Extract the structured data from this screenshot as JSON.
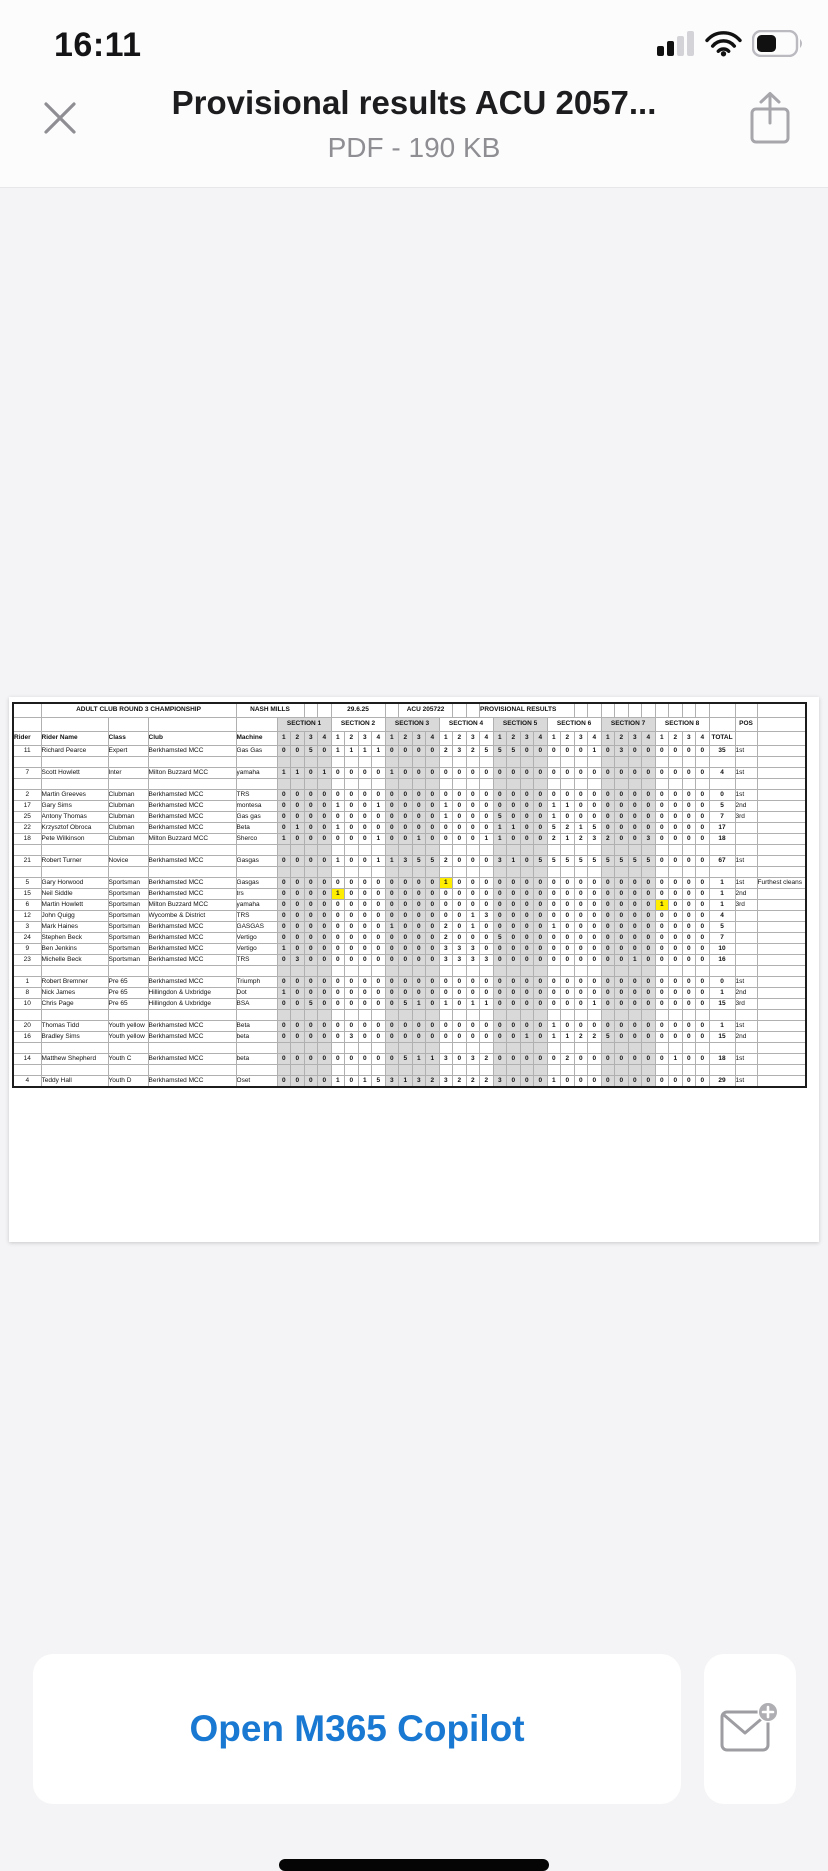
{
  "status_bar": {
    "time": "16:11"
  },
  "header": {
    "title": "Provisional results ACU 2057...",
    "subtitle": "PDF - 190 KB"
  },
  "icons": {
    "close": "x-icon",
    "share": "share-up-arrow-icon",
    "signal": "cellular-signal-icon",
    "wifi": "wifi-icon",
    "battery": "battery-half-icon",
    "mail": "new-email-plus-icon"
  },
  "colors": {
    "accent_blue": "#1878d2",
    "provisional_red": "#ee1111",
    "section_grey": "#d9d9d9",
    "highlight_yellow": "#ffee00"
  },
  "footer": {
    "button": "Open M365 Copilot"
  },
  "table": {
    "event_title": "ADULT CLUB ROUND 3 CHAMPIONSHIP",
    "venue": "NASH MILLS",
    "date": "29.6.25",
    "permit": "ACU 205722",
    "status": "PROVISIONAL RESULTS",
    "sections": [
      "SECTION 1",
      "SECTION 2",
      "SECTION 3",
      "SECTION 4",
      "SECTION 5",
      "SECTION 6",
      "SECTION 7",
      "SECTION 8"
    ],
    "observer_cols": [
      "1",
      "2",
      "3",
      "4"
    ],
    "col_headers": {
      "rider": "Rider",
      "name": "Rider Name",
      "cls": "Class",
      "club": "Club",
      "machine": "Machine",
      "total": "TOTAL",
      "pos": "POS"
    },
    "rows": [
      {
        "type": "rider",
        "num": "11",
        "name": "Richard  Pearce",
        "cls": "Expert",
        "club": "Berkhamsted MCC",
        "machine": "Gas Gas",
        "scores": [
          0,
          0,
          5,
          0,
          1,
          1,
          1,
          1,
          0,
          0,
          0,
          0,
          2,
          3,
          2,
          5,
          5,
          5,
          0,
          0,
          0,
          0,
          0,
          1,
          0,
          3,
          0,
          0,
          0,
          0,
          0,
          0
        ],
        "total": "35",
        "pos": "1st",
        "comment": "",
        "hl": []
      },
      {
        "type": "blank"
      },
      {
        "type": "rider",
        "num": "7",
        "name": "Scott Howlett",
        "cls": "Inter",
        "club": "Milton Buzzard MCC",
        "machine": "yamaha",
        "scores": [
          1,
          1,
          0,
          1,
          0,
          0,
          0,
          0,
          1,
          0,
          0,
          0,
          0,
          0,
          0,
          0,
          0,
          0,
          0,
          0,
          0,
          0,
          0,
          0,
          0,
          0,
          0,
          0,
          0,
          0,
          0,
          0
        ],
        "total": "4",
        "pos": "1st",
        "comment": "",
        "hl": []
      },
      {
        "type": "blank"
      },
      {
        "type": "rider",
        "num": "2",
        "name": "Martin Greeves",
        "cls": "Clubman",
        "club": "Berkhamsted MCC",
        "machine": "TRS",
        "scores": [
          0,
          0,
          0,
          0,
          0,
          0,
          0,
          0,
          0,
          0,
          0,
          0,
          0,
          0,
          0,
          0,
          0,
          0,
          0,
          0,
          0,
          0,
          0,
          0,
          0,
          0,
          0,
          0,
          0,
          0,
          0,
          0
        ],
        "total": "0",
        "pos": "1st",
        "comment": "",
        "hl": []
      },
      {
        "type": "rider",
        "num": "17",
        "name": "Gary Sims",
        "cls": "Clubman",
        "club": "Berkhamsted MCC",
        "machine": "montesa",
        "scores": [
          0,
          0,
          0,
          0,
          1,
          0,
          0,
          1,
          0,
          0,
          0,
          0,
          1,
          0,
          0,
          0,
          0,
          0,
          0,
          0,
          1,
          1,
          0,
          0,
          0,
          0,
          0,
          0,
          0,
          0,
          0,
          0
        ],
        "total": "5",
        "pos": "2nd",
        "comment": "",
        "hl": []
      },
      {
        "type": "rider",
        "num": "25",
        "name": "Antony Thomas",
        "cls": "Clubman",
        "club": "Berkhamsted MCC",
        "machine": "Gas gas",
        "scores": [
          0,
          0,
          0,
          0,
          0,
          0,
          0,
          0,
          0,
          0,
          0,
          0,
          1,
          0,
          0,
          0,
          5,
          0,
          0,
          0,
          1,
          0,
          0,
          0,
          0,
          0,
          0,
          0,
          0,
          0,
          0,
          0
        ],
        "total": "7",
        "pos": "3rd",
        "comment": "",
        "hl": []
      },
      {
        "type": "rider",
        "num": "22",
        "name": "Krzysztof Obroca",
        "cls": "Clubman",
        "club": "Berkhamsted MCC",
        "machine": "Beta",
        "scores": [
          0,
          1,
          0,
          0,
          1,
          0,
          0,
          0,
          0,
          0,
          0,
          0,
          0,
          0,
          0,
          0,
          1,
          1,
          0,
          0,
          5,
          2,
          1,
          5,
          0,
          0,
          0,
          0,
          0,
          0,
          0,
          0
        ],
        "total": "17",
        "pos": "",
        "comment": "",
        "hl": []
      },
      {
        "type": "rider",
        "num": "18",
        "name": "Pete Wilkinson",
        "cls": "Clubman",
        "club": "Milton Buzzard MCC",
        "machine": "Sherco",
        "scores": [
          1,
          0,
          0,
          0,
          0,
          0,
          0,
          1,
          0,
          0,
          1,
          0,
          0,
          0,
          0,
          1,
          1,
          0,
          0,
          0,
          2,
          1,
          2,
          3,
          2,
          0,
          0,
          3,
          0,
          0,
          0,
          0
        ],
        "total": "18",
        "pos": "",
        "comment": "",
        "hl": []
      },
      {
        "type": "blank"
      },
      {
        "type": "rider",
        "num": "21",
        "name": "Robert Turner",
        "cls": "Novice",
        "club": "Berkhamsted MCC",
        "machine": "Gasgas",
        "scores": [
          0,
          0,
          0,
          0,
          1,
          0,
          0,
          1,
          1,
          3,
          5,
          5,
          2,
          0,
          0,
          0,
          3,
          1,
          0,
          5,
          5,
          5,
          5,
          5,
          5,
          5,
          5,
          5,
          0,
          0,
          0,
          0
        ],
        "total": "67",
        "pos": "1st",
        "comment": "",
        "hl": []
      },
      {
        "type": "blank"
      },
      {
        "type": "rider",
        "num": "5",
        "name": "Gary  Horwood",
        "cls": "Sportsman",
        "club": "Berkhamsted MCC",
        "machine": "Gasgas",
        "scores": [
          0,
          0,
          0,
          0,
          0,
          0,
          0,
          0,
          0,
          0,
          0,
          0,
          1,
          0,
          0,
          0,
          0,
          0,
          0,
          0,
          0,
          0,
          0,
          0,
          0,
          0,
          0,
          0,
          0,
          0,
          0,
          0
        ],
        "total": "1",
        "pos": "1st",
        "comment": "Furthest cleans",
        "hl": [
          12
        ]
      },
      {
        "type": "rider",
        "num": "15",
        "name": "Neil Siddle",
        "cls": "Sportsman",
        "club": "Berkhamsted MCC",
        "machine": "trs",
        "scores": [
          0,
          0,
          0,
          0,
          1,
          0,
          0,
          0,
          0,
          0,
          0,
          0,
          0,
          0,
          0,
          0,
          0,
          0,
          0,
          0,
          0,
          0,
          0,
          0,
          0,
          0,
          0,
          0,
          0,
          0,
          0,
          0
        ],
        "total": "1",
        "pos": "2nd",
        "comment": "",
        "hl": [
          4
        ]
      },
      {
        "type": "rider",
        "num": "6",
        "name": "Martin Howlett",
        "cls": "Sportsman",
        "club": "Milton Buzzard MCC",
        "machine": "yamaha",
        "scores": [
          0,
          0,
          0,
          0,
          0,
          0,
          0,
          0,
          0,
          0,
          0,
          0,
          0,
          0,
          0,
          0,
          0,
          0,
          0,
          0,
          0,
          0,
          0,
          0,
          0,
          0,
          0,
          0,
          1,
          0,
          0,
          0
        ],
        "total": "1",
        "pos": "3rd",
        "comment": "",
        "hl": [
          28
        ]
      },
      {
        "type": "rider",
        "num": "12",
        "name": "John Quigg",
        "cls": "Sportsman",
        "club": "Wycombe & District",
        "machine": "TRS",
        "scores": [
          0,
          0,
          0,
          0,
          0,
          0,
          0,
          0,
          0,
          0,
          0,
          0,
          0,
          0,
          1,
          3,
          0,
          0,
          0,
          0,
          0,
          0,
          0,
          0,
          0,
          0,
          0,
          0,
          0,
          0,
          0,
          0
        ],
        "total": "4",
        "pos": "",
        "comment": "",
        "hl": []
      },
      {
        "type": "rider",
        "num": "3",
        "name": "Mark Haines",
        "cls": "Sportsman",
        "club": "Berkhamsted MCC",
        "machine": "GASGAS",
        "scores": [
          0,
          0,
          0,
          0,
          0,
          0,
          0,
          0,
          1,
          0,
          0,
          0,
          2,
          0,
          1,
          0,
          0,
          0,
          0,
          0,
          1,
          0,
          0,
          0,
          0,
          0,
          0,
          0,
          0,
          0,
          0,
          0
        ],
        "total": "5",
        "pos": "",
        "comment": "",
        "hl": []
      },
      {
        "type": "rider",
        "num": "24",
        "name": "Stephen Beck",
        "cls": "Sportsman",
        "club": "Berkhamsted MCC",
        "machine": "Vertigo",
        "scores": [
          0,
          0,
          0,
          0,
          0,
          0,
          0,
          0,
          0,
          0,
          0,
          0,
          2,
          0,
          0,
          0,
          5,
          0,
          0,
          0,
          0,
          0,
          0,
          0,
          0,
          0,
          0,
          0,
          0,
          0,
          0,
          0
        ],
        "total": "7",
        "pos": "",
        "comment": "",
        "hl": []
      },
      {
        "type": "rider",
        "num": "9",
        "name": "Ben Jenkins",
        "cls": "Sportsman",
        "club": "Berkhamsted MCC",
        "machine": "Vertigo",
        "scores": [
          1,
          0,
          0,
          0,
          0,
          0,
          0,
          0,
          0,
          0,
          0,
          0,
          3,
          3,
          3,
          0,
          0,
          0,
          0,
          0,
          0,
          0,
          0,
          0,
          0,
          0,
          0,
          0,
          0,
          0,
          0,
          0
        ],
        "total": "10",
        "pos": "",
        "comment": "",
        "hl": []
      },
      {
        "type": "rider",
        "num": "23",
        "name": "Michelle Beck",
        "cls": "Sportsman",
        "club": "Berkhamsted MCC",
        "machine": "TRS",
        "scores": [
          0,
          3,
          0,
          0,
          0,
          0,
          0,
          0,
          0,
          0,
          0,
          0,
          3,
          3,
          3,
          3,
          0,
          0,
          0,
          0,
          0,
          0,
          0,
          0,
          0,
          0,
          1,
          0,
          0,
          0,
          0,
          0
        ],
        "total": "16",
        "pos": "",
        "comment": "",
        "hl": []
      },
      {
        "type": "blank"
      },
      {
        "type": "rider",
        "num": "1",
        "name": "Robert Bremner",
        "cls": "Pre 65",
        "club": "Berkhamsted MCC",
        "machine": "Triumph",
        "scores": [
          0,
          0,
          0,
          0,
          0,
          0,
          0,
          0,
          0,
          0,
          0,
          0,
          0,
          0,
          0,
          0,
          0,
          0,
          0,
          0,
          0,
          0,
          0,
          0,
          0,
          0,
          0,
          0,
          0,
          0,
          0,
          0
        ],
        "total": "0",
        "pos": "1st",
        "comment": "",
        "hl": []
      },
      {
        "type": "rider",
        "num": "8",
        "name": "Nick James",
        "cls": "Pre 65",
        "club": "Hillingdon & Uxbridge",
        "machine": "Dot",
        "scores": [
          1,
          0,
          0,
          0,
          0,
          0,
          0,
          0,
          0,
          0,
          0,
          0,
          0,
          0,
          0,
          0,
          0,
          0,
          0,
          0,
          0,
          0,
          0,
          0,
          0,
          0,
          0,
          0,
          0,
          0,
          0,
          0
        ],
        "total": "1",
        "pos": "2nd",
        "comment": "",
        "hl": []
      },
      {
        "type": "rider",
        "num": "10",
        "name": "Chris Page",
        "cls": "Pre 65",
        "club": "Hillingdon & Uxbridge",
        "machine": "BSA",
        "scores": [
          0,
          0,
          5,
          0,
          0,
          0,
          0,
          0,
          0,
          5,
          1,
          0,
          1,
          0,
          1,
          1,
          0,
          0,
          0,
          0,
          0,
          0,
          0,
          1,
          0,
          0,
          0,
          0,
          0,
          0,
          0,
          0
        ],
        "total": "15",
        "pos": "3rd",
        "comment": "",
        "hl": []
      },
      {
        "type": "blank"
      },
      {
        "type": "rider",
        "num": "20",
        "name": "Thomas Tidd",
        "cls": "Youth yellow",
        "club": "Berkhamsted MCC",
        "machine": "Beta",
        "scores": [
          0,
          0,
          0,
          0,
          0,
          0,
          0,
          0,
          0,
          0,
          0,
          0,
          0,
          0,
          0,
          0,
          0,
          0,
          0,
          0,
          1,
          0,
          0,
          0,
          0,
          0,
          0,
          0,
          0,
          0,
          0,
          0
        ],
        "total": "1",
        "pos": "1st",
        "comment": "",
        "hl": []
      },
      {
        "type": "rider",
        "num": "16",
        "name": "Bradley Sims",
        "cls": "Youth yellow",
        "club": "Berkhamsted MCC",
        "machine": "beta",
        "scores": [
          0,
          0,
          0,
          0,
          0,
          3,
          0,
          0,
          0,
          0,
          0,
          0,
          0,
          0,
          0,
          0,
          0,
          0,
          1,
          0,
          1,
          1,
          2,
          2,
          5,
          0,
          0,
          0,
          0,
          0,
          0,
          0
        ],
        "total": "15",
        "pos": "2nd",
        "comment": "",
        "hl": []
      },
      {
        "type": "blank"
      },
      {
        "type": "rider",
        "num": "14",
        "name": "Matthew Shepherd",
        "cls": "Youth C",
        "club": "Berkhamsted MCC",
        "machine": "beta",
        "scores": [
          0,
          0,
          0,
          0,
          0,
          0,
          0,
          0,
          0,
          5,
          1,
          1,
          3,
          0,
          3,
          2,
          0,
          0,
          0,
          0,
          0,
          2,
          0,
          0,
          0,
          0,
          0,
          0,
          0,
          1,
          0,
          0
        ],
        "total": "18",
        "pos": "1st",
        "comment": "",
        "hl": []
      },
      {
        "type": "blank"
      },
      {
        "type": "rider",
        "num": "4",
        "name": "Teddy Hall",
        "cls": "Youth D",
        "club": "Berkhamsted MCC",
        "machine": "Oset",
        "scores": [
          0,
          0,
          0,
          0,
          1,
          0,
          1,
          5,
          3,
          1,
          3,
          2,
          3,
          2,
          2,
          2,
          3,
          0,
          0,
          0,
          1,
          0,
          0,
          0,
          0,
          0,
          0,
          0,
          0,
          0,
          0,
          0
        ],
        "total": "29",
        "pos": "1st",
        "comment": "",
        "hl": []
      }
    ]
  }
}
